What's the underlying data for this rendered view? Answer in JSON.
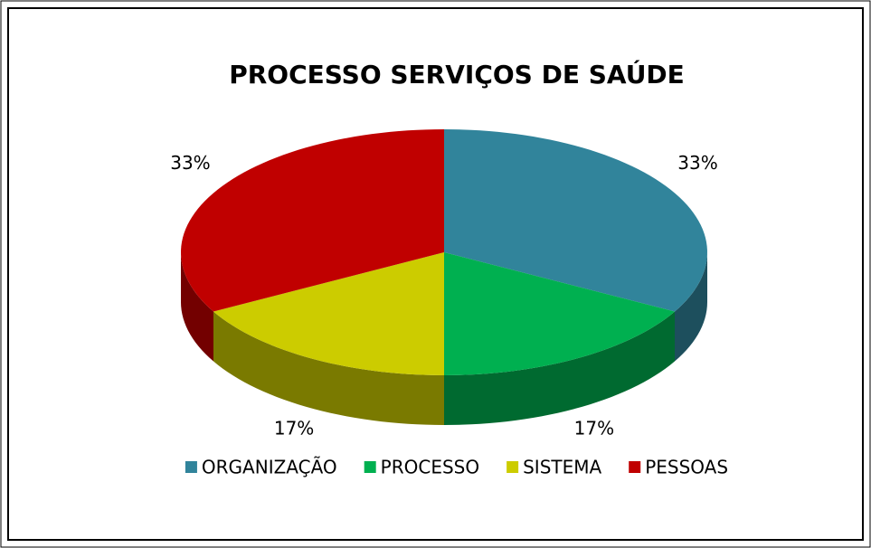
{
  "chart_data": {
    "type": "pie",
    "title": "PROCESSO SERVIÇOS DE SAÚDE",
    "categories": [
      "ORGANIZAÇÃO",
      "PROCESSO",
      "SISTEMA",
      "PESSOAS"
    ],
    "values": [
      33,
      17,
      17,
      33
    ],
    "value_labels": [
      "33%",
      "17%",
      "17%",
      "33%"
    ],
    "colors": [
      "#31849b",
      "#00b050",
      "#cccc00",
      "#c00000"
    ],
    "legend": "bottom"
  }
}
